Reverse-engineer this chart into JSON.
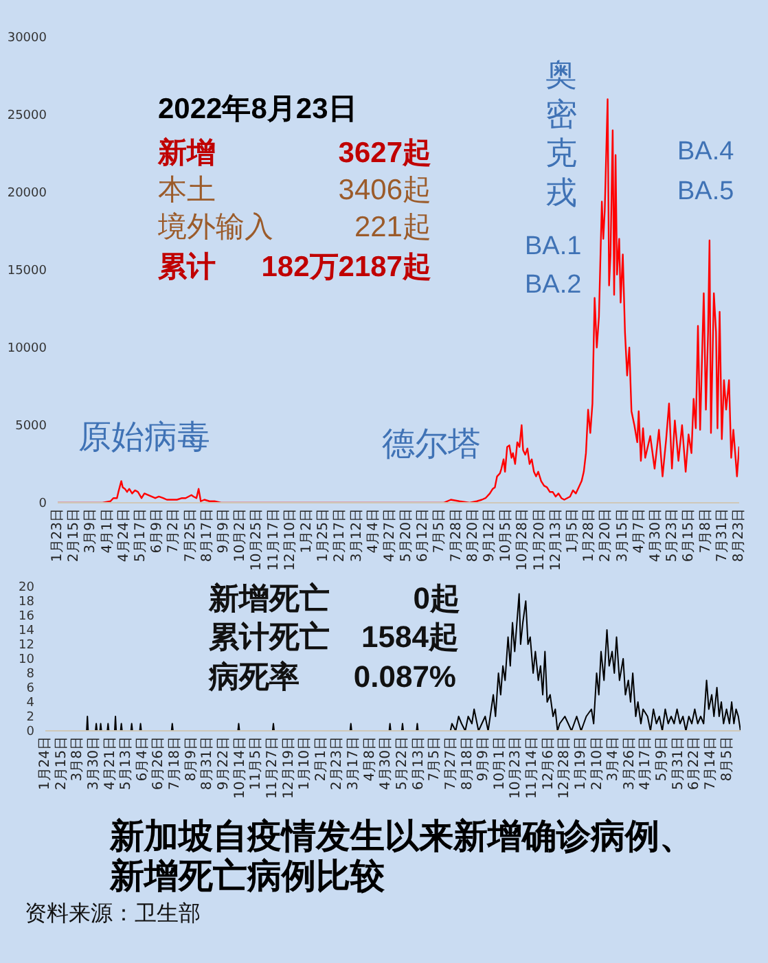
{
  "chart_data": [
    {
      "type": "line",
      "x": [
        "2020-01-23",
        "2020-03-25",
        "2020-04-05",
        "2020-04-09",
        "2020-04-14",
        "2020-04-16",
        "2020-04-20",
        "2020-04-22",
        "2020-04-25",
        "2020-04-28",
        "2020-05-01",
        "2020-05-05",
        "2020-05-09",
        "2020-05-13",
        "2020-05-18",
        "2020-05-22",
        "2020-05-27",
        "2020-06-01",
        "2020-06-06",
        "2020-06-11",
        "2020-06-17",
        "2020-06-22",
        "2020-06-29",
        "2020-07-06",
        "2020-07-13",
        "2020-07-18",
        "2020-07-22",
        "2020-07-26",
        "2020-07-29",
        "2020-08-02",
        "2020-08-05",
        "2020-08-08",
        "2020-08-13",
        "2020-08-20",
        "2020-08-27",
        "2020-09-05",
        "2021-07-10",
        "2021-07-20",
        "2021-08-01",
        "2021-08-15",
        "2021-08-25",
        "2021-09-01",
        "2021-09-06",
        "2021-09-12",
        "2021-09-16",
        "2021-09-19",
        "2021-09-22",
        "2021-09-26",
        "2021-09-28",
        "2021-10-01",
        "2021-10-03",
        "2021-10-06",
        "2021-10-09",
        "2021-10-12",
        "2021-10-14",
        "2021-10-17",
        "2021-10-20",
        "2021-10-23",
        "2021-10-26",
        "2021-10-28",
        "2021-10-31",
        "2021-11-03",
        "2021-11-06",
        "2021-11-09",
        "2021-11-12",
        "2021-11-15",
        "2021-11-18",
        "2021-11-22",
        "2021-11-26",
        "2021-11-30",
        "2021-12-04",
        "2021-12-08",
        "2021-12-12",
        "2021-12-16",
        "2021-12-20",
        "2021-12-24",
        "2021-12-28",
        "2022-01-01",
        "2022-01-05",
        "2022-01-09",
        "2022-01-13",
        "2022-01-17",
        "2022-01-20",
        "2022-01-23",
        "2022-01-26",
        "2022-01-29",
        "2022-02-01",
        "2022-02-04",
        "2022-02-07",
        "2022-02-10",
        "2022-02-14",
        "2022-02-16",
        "2022-02-18",
        "2022-02-22",
        "2022-02-24",
        "2022-02-26",
        "2022-03-01",
        "2022-03-03",
        "2022-03-05",
        "2022-03-07",
        "2022-03-10",
        "2022-03-12",
        "2022-03-15",
        "2022-03-18",
        "2022-03-21",
        "2022-03-24",
        "2022-03-27",
        "2022-03-31",
        "2022-04-04",
        "2022-04-06",
        "2022-04-09",
        "2022-04-12",
        "2022-04-15",
        "2022-04-22",
        "2022-04-28",
        "2022-05-04",
        "2022-05-09",
        "2022-05-14",
        "2022-05-18",
        "2022-05-22",
        "2022-05-26",
        "2022-05-31",
        "2022-06-05",
        "2022-06-10",
        "2022-06-14",
        "2022-06-18",
        "2022-06-21",
        "2022-06-24",
        "2022-06-27",
        "2022-06-30",
        "2022-07-05",
        "2022-07-08",
        "2022-07-11",
        "2022-07-13",
        "2022-07-15",
        "2022-07-19",
        "2022-07-22",
        "2022-07-24",
        "2022-07-27",
        "2022-07-30",
        "2022-08-02",
        "2022-08-05",
        "2022-08-09",
        "2022-08-12",
        "2022-08-15",
        "2022-08-18",
        "2022-08-20",
        "2022-08-23"
      ],
      "series": [
        {
          "color": "#ff0000",
          "values": [
            0,
            0,
            100,
            300,
            300,
            700,
            1400,
            1000,
            900,
            700,
            900,
            600,
            800,
            700,
            300,
            600,
            500,
            400,
            300,
            400,
            300,
            200,
            200,
            200,
            300,
            300,
            400,
            500,
            400,
            300,
            900,
            100,
            200,
            100,
            100,
            0,
            0,
            200,
            100,
            0,
            100,
            200,
            300,
            600,
            900,
            1000,
            1700,
            1900,
            2200,
            2800,
            2000,
            3600,
            3700,
            2900,
            3200,
            2500,
            3900,
            3600,
            5000,
            3400,
            3100,
            3500,
            2500,
            2800,
            2000,
            1700,
            2000,
            1400,
            1100,
            1000,
            700,
            700,
            400,
            600,
            300,
            200,
            300,
            400,
            800,
            600,
            1000,
            1400,
            2000,
            3200,
            6000,
            4500,
            6400,
            13200,
            10000,
            12000,
            19400,
            17000,
            18800,
            26000,
            14000,
            16000,
            24000,
            13400,
            22400,
            14700,
            17000,
            12900,
            16000,
            11000,
            8200,
            10000,
            5900,
            5000,
            3900,
            5900,
            2700,
            4800,
            2900,
            4300,
            2200,
            4700,
            1700,
            4100,
            6400,
            2200,
            5300,
            2700,
            5000,
            2000,
            4400,
            3200,
            6700,
            4800,
            11400,
            4700,
            13500,
            6000,
            11000,
            16900,
            4500,
            13500,
            11000,
            4800,
            12300,
            4100,
            7900,
            6000,
            7900,
            2900,
            4700,
            2900,
            1700,
            3627
          ]
        }
      ],
      "xlim": [
        "2020-01-23",
        "2022-08-23"
      ],
      "xticks": [
        {
          "value": "2020-01-23",
          "label": "1月23日"
        },
        {
          "value": "2020-02-15",
          "label": "2月15日"
        },
        {
          "value": "2020-03-09",
          "label": "3月9日"
        },
        {
          "value": "2020-04-01",
          "label": "4月1日"
        },
        {
          "value": "2020-04-24",
          "label": "4月24日"
        },
        {
          "value": "2020-05-17",
          "label": "5月17日"
        },
        {
          "value": "2020-06-09",
          "label": "6月9日"
        },
        {
          "value": "2020-07-02",
          "label": "7月2日"
        },
        {
          "value": "2020-07-25",
          "label": "7月25日"
        },
        {
          "value": "2020-08-17",
          "label": "8月17日"
        },
        {
          "value": "2020-09-09",
          "label": "9月9日"
        },
        {
          "value": "2020-10-02",
          "label": "10月2日"
        },
        {
          "value": "2020-10-25",
          "label": "10月25日"
        },
        {
          "value": "2020-11-17",
          "label": "11月17日"
        },
        {
          "value": "2020-12-10",
          "label": "12月10日"
        },
        {
          "value": "2021-01-02",
          "label": "1月2日"
        },
        {
          "value": "2021-01-25",
          "label": "1月25日"
        },
        {
          "value": "2021-02-17",
          "label": "2月17日"
        },
        {
          "value": "2021-03-12",
          "label": "3月12日"
        },
        {
          "value": "2021-04-04",
          "label": "4月4日"
        },
        {
          "value": "2021-04-27",
          "label": "4月27日"
        },
        {
          "value": "2021-05-20",
          "label": "5月20日"
        },
        {
          "value": "2021-06-12",
          "label": "6月12日"
        },
        {
          "value": "2021-07-05",
          "label": "7月5日"
        },
        {
          "value": "2021-07-28",
          "label": "7月28日"
        },
        {
          "value": "2021-08-20",
          "label": "8月20日"
        },
        {
          "value": "2021-09-12",
          "label": "9月12日"
        },
        {
          "value": "2021-10-05",
          "label": "10月5日"
        },
        {
          "value": "2021-10-28",
          "label": "10月28日"
        },
        {
          "value": "2021-11-20",
          "label": "11月20日"
        },
        {
          "value": "2021-12-13",
          "label": "12月13日"
        },
        {
          "value": "2022-01-05",
          "label": "1月5日"
        },
        {
          "value": "2022-01-28",
          "label": "1月28日"
        },
        {
          "value": "2022-02-20",
          "label": "2月20日"
        },
        {
          "value": "2022-03-15",
          "label": "3月15日"
        },
        {
          "value": "2022-04-07",
          "label": "4月7日"
        },
        {
          "value": "2022-04-30",
          "label": "4月30日"
        },
        {
          "value": "2022-05-23",
          "label": "5月23日"
        },
        {
          "value": "2022-06-15",
          "label": "6月15日"
        },
        {
          "value": "2022-07-08",
          "label": "7月8日"
        },
        {
          "value": "2022-07-31",
          "label": "7月31日"
        },
        {
          "value": "2022-08-23",
          "label": "8月23日"
        }
      ],
      "ylim": [
        0,
        30000
      ],
      "yticks": [
        0,
        5000,
        10000,
        15000,
        20000,
        25000,
        30000
      ],
      "annotations": [
        "2022年8月23日",
        "新增",
        "3627起",
        "本土",
        "3406起",
        "境外输入",
        "221起",
        "累计",
        "182万2187起",
        "原始病毒",
        "德尔塔",
        "奥密克戎",
        "BA.1",
        "BA.2",
        "BA.4",
        "BA.5"
      ]
    },
    {
      "type": "line",
      "title": "新加坡自疫情发生以来新增确诊病例、新增死亡病例比较",
      "x": [
        "2020-01-24",
        "2020-03-20",
        "2020-03-21",
        "2020-03-22",
        "2020-04-01",
        "2020-04-02",
        "2020-04-03",
        "2020-04-07",
        "2020-04-08",
        "2020-04-09",
        "2020-04-17",
        "2020-04-18",
        "2020-04-19",
        "2020-04-27",
        "2020-04-28",
        "2020-04-29",
        "2020-05-05",
        "2020-05-06",
        "2020-05-07",
        "2020-05-19",
        "2020-05-20",
        "2020-05-21",
        "2020-05-31",
        "2020-06-01",
        "2020-06-02",
        "2020-07-13",
        "2020-07-14",
        "2020-07-15",
        "2020-10-11",
        "2020-10-12",
        "2020-10-13",
        "2020-11-27",
        "2020-11-28",
        "2020-11-29",
        "2021-03-12",
        "2021-03-13",
        "2021-03-14",
        "2021-05-04",
        "2021-05-05",
        "2021-05-06",
        "2021-05-21",
        "2021-05-22",
        "2021-05-23",
        "2021-06-10",
        "2021-06-11",
        "2021-06-12",
        "2021-07-26",
        "2021-07-28",
        "2021-08-02",
        "2021-08-06",
        "2021-08-10",
        "2021-08-15",
        "2021-08-19",
        "2021-08-24",
        "2021-08-27",
        "2021-09-02",
        "2021-09-11",
        "2021-09-15",
        "2021-09-22",
        "2021-09-25",
        "2021-09-29",
        "2021-10-02",
        "2021-10-05",
        "2021-10-08",
        "2021-10-12",
        "2021-10-15",
        "2021-10-18",
        "2021-10-21",
        "2021-10-27",
        "2021-10-29",
        "2021-11-01",
        "2021-11-05",
        "2021-11-08",
        "2021-11-11",
        "2021-11-15",
        "2021-11-18",
        "2021-11-22",
        "2021-11-25",
        "2021-11-28",
        "2021-12-01",
        "2021-12-04",
        "2021-12-08",
        "2021-12-12",
        "2021-12-15",
        "2021-12-18",
        "2021-12-21",
        "2021-12-28",
        "2022-01-06",
        "2022-01-13",
        "2022-01-19",
        "2022-01-26",
        "2022-02-02",
        "2022-02-05",
        "2022-02-09",
        "2022-02-12",
        "2022-02-15",
        "2022-02-19",
        "2022-02-23",
        "2022-02-26",
        "2022-03-02",
        "2022-03-05",
        "2022-03-08",
        "2022-03-12",
        "2022-03-17",
        "2022-03-20",
        "2022-03-24",
        "2022-03-27",
        "2022-03-30",
        "2022-04-03",
        "2022-04-06",
        "2022-04-10",
        "2022-04-13",
        "2022-04-19",
        "2022-04-23",
        "2022-04-27",
        "2022-05-01",
        "2022-05-05",
        "2022-05-09",
        "2022-05-13",
        "2022-05-17",
        "2022-05-21",
        "2022-05-25",
        "2022-05-29",
        "2022-06-02",
        "2022-06-06",
        "2022-06-10",
        "2022-06-14",
        "2022-06-18",
        "2022-06-22",
        "2022-06-26",
        "2022-06-30",
        "2022-07-04",
        "2022-07-08",
        "2022-07-11",
        "2022-07-15",
        "2022-07-18",
        "2022-07-22",
        "2022-07-25",
        "2022-07-28",
        "2022-07-31",
        "2022-08-04",
        "2022-08-08",
        "2022-08-11",
        "2022-08-14",
        "2022-08-17",
        "2022-08-20",
        "2022-08-23"
      ],
      "series": [
        {
          "color": "#000000",
          "values": [
            0,
            0,
            2,
            0,
            0,
            1,
            0,
            0,
            1,
            0,
            0,
            1,
            0,
            0,
            2,
            0,
            0,
            1,
            0,
            0,
            1,
            0,
            0,
            1,
            0,
            0,
            1,
            0,
            0,
            1,
            0,
            0,
            1,
            0,
            0,
            1,
            0,
            0,
            1,
            0,
            0,
            1,
            0,
            0,
            1,
            0,
            0,
            1,
            0,
            2,
            1,
            0,
            2,
            1,
            3,
            0,
            2,
            0,
            5,
            2,
            8,
            5,
            9,
            7,
            13,
            9,
            15,
            11,
            19,
            12,
            15,
            18,
            12,
            13,
            8,
            11,
            7,
            9,
            5,
            11,
            4,
            5,
            2,
            3,
            0,
            1,
            2,
            0,
            2,
            0,
            2,
            3,
            1,
            8,
            5,
            11,
            7,
            14,
            9,
            11,
            8,
            13,
            7,
            10,
            5,
            7,
            4,
            8,
            2,
            4,
            1,
            3,
            2,
            0,
            3,
            1,
            2,
            0,
            3,
            1,
            2,
            1,
            3,
            1,
            2,
            0,
            2,
            1,
            3,
            1,
            2,
            1,
            7,
            3,
            5,
            2,
            6,
            2,
            4,
            1,
            3,
            1,
            4,
            1,
            3,
            2,
            0
          ]
        }
      ],
      "xlim": [
        "2020-01-24",
        "2022-08-23"
      ],
      "xticks": [
        {
          "value": "2020-01-24",
          "label": "1月24日"
        },
        {
          "value": "2020-02-15",
          "label": "2月15日"
        },
        {
          "value": "2020-03-08",
          "label": "3月8日"
        },
        {
          "value": "2020-03-30",
          "label": "3月30日"
        },
        {
          "value": "2020-04-21",
          "label": "4月21日"
        },
        {
          "value": "2020-05-13",
          "label": "5月13日"
        },
        {
          "value": "2020-06-04",
          "label": "6月4日"
        },
        {
          "value": "2020-06-26",
          "label": "6月26日"
        },
        {
          "value": "2020-07-18",
          "label": "7月18日"
        },
        {
          "value": "2020-08-09",
          "label": "8月9日"
        },
        {
          "value": "2020-08-31",
          "label": "8月31日"
        },
        {
          "value": "2020-09-22",
          "label": "9月22日"
        },
        {
          "value": "2020-10-14",
          "label": "10月14日"
        },
        {
          "value": "2020-11-05",
          "label": "11月5日"
        },
        {
          "value": "2020-11-27",
          "label": "11月27日"
        },
        {
          "value": "2020-12-19",
          "label": "12月19日"
        },
        {
          "value": "2021-01-10",
          "label": "1月10日"
        },
        {
          "value": "2021-02-01",
          "label": "2月1日"
        },
        {
          "value": "2021-02-23",
          "label": "2月23日"
        },
        {
          "value": "2021-03-17",
          "label": "3月17日"
        },
        {
          "value": "2021-04-08",
          "label": "4月8日"
        },
        {
          "value": "2021-04-30",
          "label": "4月30日"
        },
        {
          "value": "2021-05-22",
          "label": "5月22日"
        },
        {
          "value": "2021-06-13",
          "label": "6月13日"
        },
        {
          "value": "2021-07-05",
          "label": "7月5日"
        },
        {
          "value": "2021-07-27",
          "label": "7月27日"
        },
        {
          "value": "2021-08-18",
          "label": "8月18日"
        },
        {
          "value": "2021-09-09",
          "label": "9月9日"
        },
        {
          "value": "2021-10-01",
          "label": "10月1日"
        },
        {
          "value": "2021-10-23",
          "label": "10月23日"
        },
        {
          "value": "2021-11-14",
          "label": "11月14日"
        },
        {
          "value": "2021-12-06",
          "label": "12月6日"
        },
        {
          "value": "2021-12-28",
          "label": "12月28日"
        },
        {
          "value": "2022-01-19",
          "label": "1月19日"
        },
        {
          "value": "2022-02-10",
          "label": "2月10日"
        },
        {
          "value": "2022-03-04",
          "label": "3月4日"
        },
        {
          "value": "2022-03-26",
          "label": "3月26日"
        },
        {
          "value": "2022-04-17",
          "label": "4月17日"
        },
        {
          "value": "2022-05-09",
          "label": "5月9日"
        },
        {
          "value": "2022-05-31",
          "label": "5月31日"
        },
        {
          "value": "2022-06-22",
          "label": "6月22日"
        },
        {
          "value": "2022-07-14",
          "label": "7月14日"
        },
        {
          "value": "2022-08-05",
          "label": "8月5日"
        }
      ],
      "ylim": [
        0,
        20
      ],
      "yticks": [
        0,
        2,
        4,
        6,
        8,
        10,
        12,
        14,
        16,
        18,
        20
      ],
      "annotations": [
        "新增死亡",
        "0起",
        "累计死亡",
        "1584起",
        "病死率",
        "0.087%",
        "资料来源：卫生部"
      ]
    }
  ]
}
